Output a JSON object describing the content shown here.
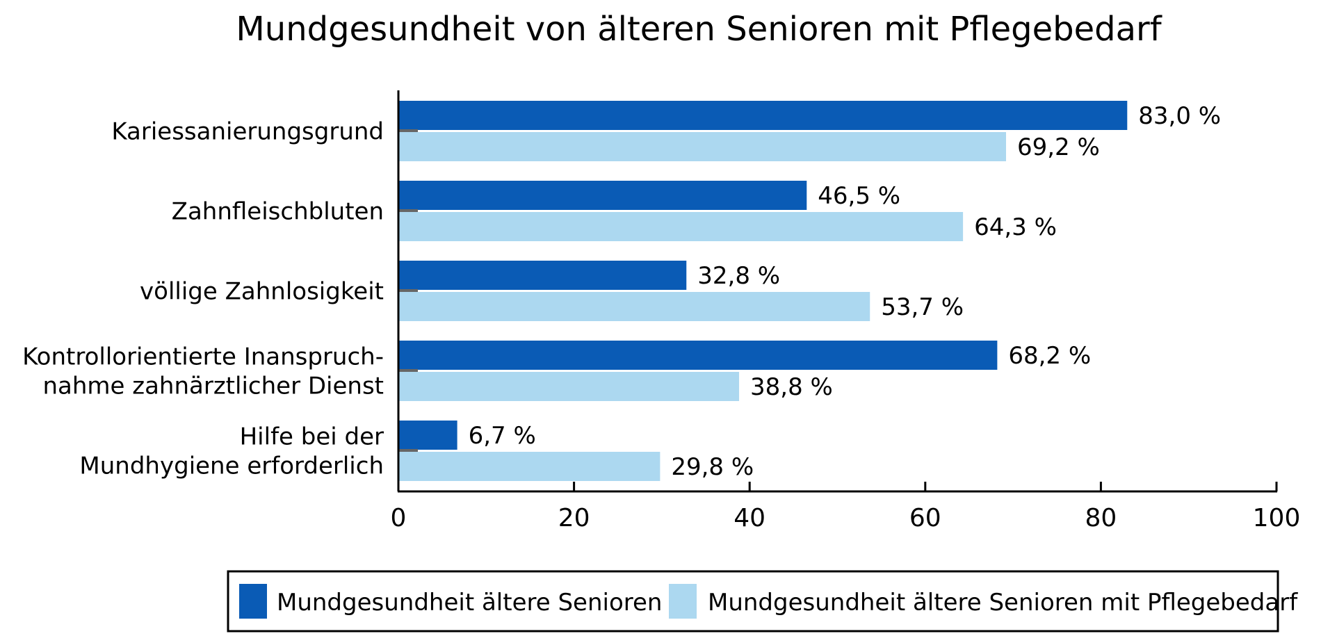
{
  "chart_data": {
    "type": "bar",
    "orientation": "horizontal",
    "title": "Mundgesundheit von älteren Senioren mit Pflegebedarf",
    "categories": [
      [
        "Kariessanierungsgrund"
      ],
      [
        "Zahnfleischbluten"
      ],
      [
        "völlige Zahnlosigkeit"
      ],
      [
        "Kontrollorientierte Inanspruch-",
        "nahme zahnärztlicher Dienst"
      ],
      [
        "Hilfe bei der",
        "Mundhygiene erforderlich"
      ]
    ],
    "series": [
      {
        "name": "Mundgesundheit ältere Senioren",
        "color": "#0a5bb5",
        "values": [
          83.0,
          46.5,
          32.8,
          68.2,
          6.7
        ],
        "labels": [
          "83,0 %",
          "46,5 %",
          "32,8 %",
          "68,2 %",
          "6,7 %"
        ]
      },
      {
        "name": "Mundgesundheit ältere Senioren mit Pflegebedarf",
        "color": "#acd8f0",
        "values": [
          69.2,
          64.3,
          53.7,
          38.8,
          29.8
        ],
        "labels": [
          "69,2 %",
          "64,3 %",
          "53,7 %",
          "38,8 %",
          "29,8 %"
        ]
      }
    ],
    "xlim": [
      0,
      100
    ],
    "xticks": [
      0,
      20,
      40,
      60,
      80,
      100
    ],
    "xtick_labels": [
      "0",
      "20",
      "40",
      "60",
      "80",
      "100"
    ],
    "grid": false,
    "legend_position": "bottom"
  }
}
